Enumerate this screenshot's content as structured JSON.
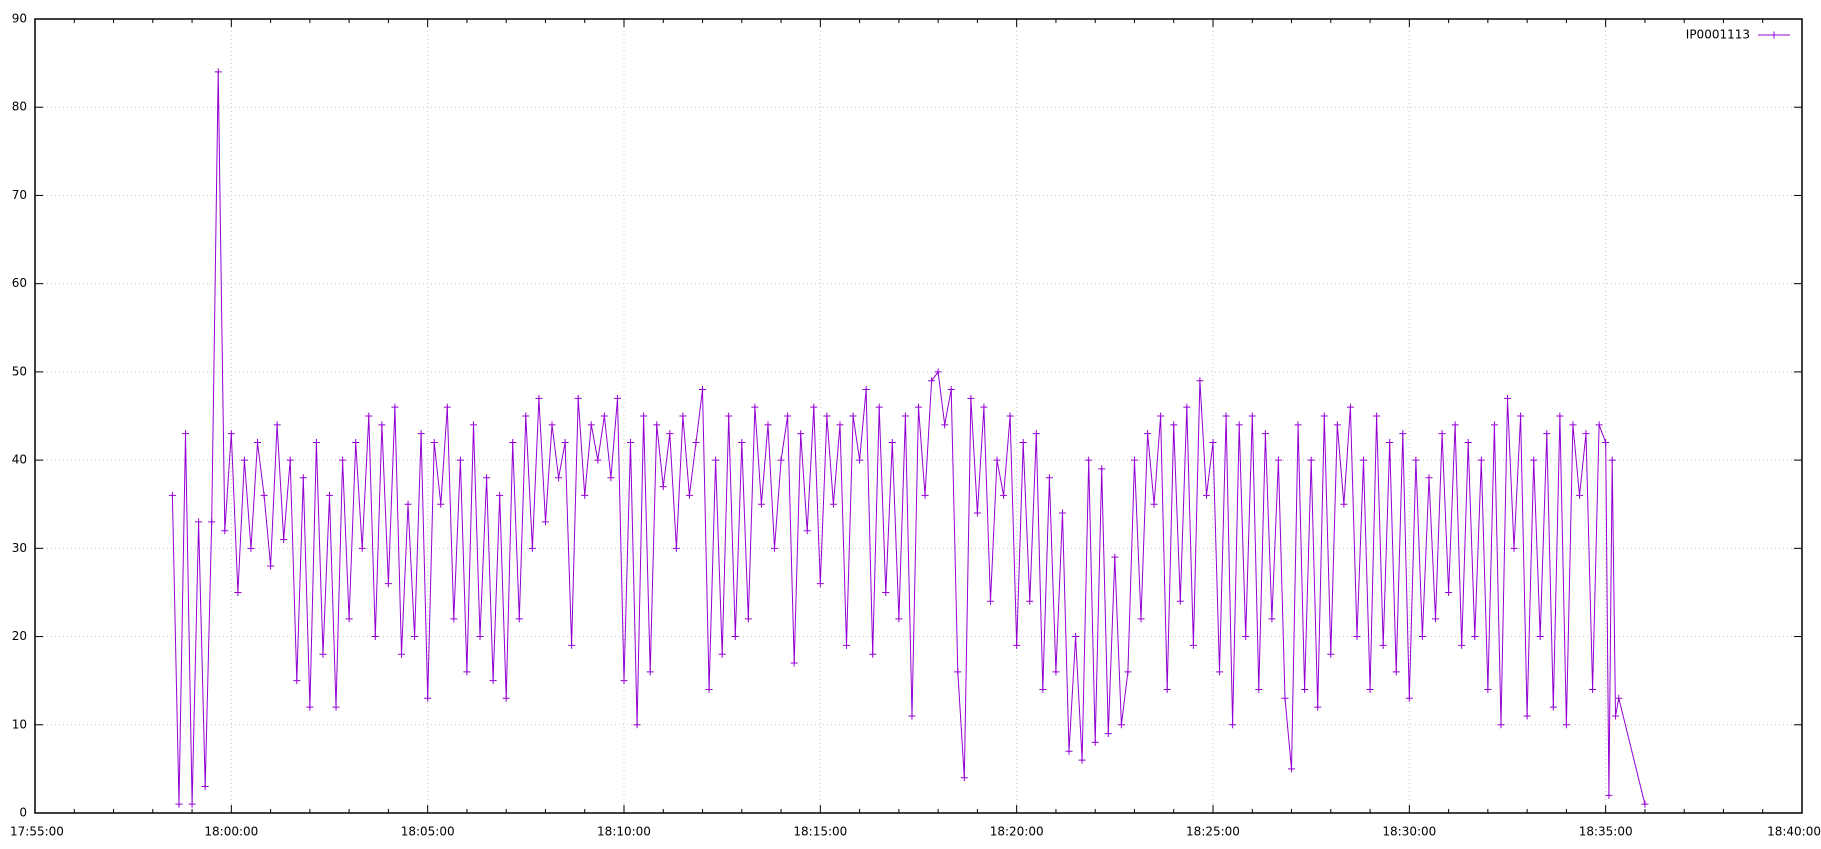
{
  "chart_data": {
    "type": "line",
    "series": [
      {
        "name": "IP0001113",
        "color": "#9400d3",
        "x": [
          "17:58:30",
          "17:58:40",
          "17:58:50",
          "17:59:00",
          "17:59:10",
          "17:59:20",
          "17:59:30",
          "17:59:40",
          "17:59:50",
          "18:00:00",
          "18:00:10",
          "18:00:20",
          "18:00:30",
          "18:00:40",
          "18:00:50",
          "18:01:00",
          "18:01:10",
          "18:01:20",
          "18:01:30",
          "18:01:40",
          "18:01:50",
          "18:02:00",
          "18:02:10",
          "18:02:20",
          "18:02:30",
          "18:02:40",
          "18:02:50",
          "18:03:00",
          "18:03:10",
          "18:03:20",
          "18:03:30",
          "18:03:40",
          "18:03:50",
          "18:04:00",
          "18:04:10",
          "18:04:20",
          "18:04:30",
          "18:04:40",
          "18:04:50",
          "18:05:00",
          "18:05:10",
          "18:05:20",
          "18:05:30",
          "18:05:40",
          "18:05:50",
          "18:06:00",
          "18:06:10",
          "18:06:20",
          "18:06:30",
          "18:06:40",
          "18:06:50",
          "18:07:00",
          "18:07:10",
          "18:07:20",
          "18:07:30",
          "18:07:40",
          "18:07:50",
          "18:08:00",
          "18:08:10",
          "18:08:20",
          "18:08:30",
          "18:08:40",
          "18:08:50",
          "18:09:00",
          "18:09:10",
          "18:09:20",
          "18:09:30",
          "18:09:40",
          "18:09:50",
          "18:10:00",
          "18:10:10",
          "18:10:20",
          "18:10:30",
          "18:10:40",
          "18:10:50",
          "18:11:00",
          "18:11:10",
          "18:11:20",
          "18:11:30",
          "18:11:40",
          "18:11:50",
          "18:12:00",
          "18:12:10",
          "18:12:20",
          "18:12:30",
          "18:12:40",
          "18:12:50",
          "18:13:00",
          "18:13:10",
          "18:13:20",
          "18:13:30",
          "18:13:40",
          "18:13:50",
          "18:14:00",
          "18:14:10",
          "18:14:20",
          "18:14:30",
          "18:14:40",
          "18:14:50",
          "18:15:00",
          "18:15:10",
          "18:15:20",
          "18:15:30",
          "18:15:40",
          "18:15:50",
          "18:16:00",
          "18:16:10",
          "18:16:20",
          "18:16:30",
          "18:16:40",
          "18:16:50",
          "18:17:00",
          "18:17:10",
          "18:17:20",
          "18:17:30",
          "18:17:40",
          "18:17:50",
          "18:18:00",
          "18:18:10",
          "18:18:20",
          "18:18:30",
          "18:18:40",
          "18:18:50",
          "18:19:00",
          "18:19:10",
          "18:19:20",
          "18:19:30",
          "18:19:40",
          "18:19:50",
          "18:20:00",
          "18:20:10",
          "18:20:20",
          "18:20:30",
          "18:20:40",
          "18:20:50",
          "18:21:00",
          "18:21:10",
          "18:21:20",
          "18:21:30",
          "18:21:40",
          "18:21:50",
          "18:22:00",
          "18:22:10",
          "18:22:20",
          "18:22:30",
          "18:22:40",
          "18:22:50",
          "18:23:00",
          "18:23:10",
          "18:23:20",
          "18:23:30",
          "18:23:40",
          "18:23:50",
          "18:24:00",
          "18:24:10",
          "18:24:20",
          "18:24:30",
          "18:24:40",
          "18:24:50",
          "18:25:00",
          "18:25:10",
          "18:25:20",
          "18:25:30",
          "18:25:40",
          "18:25:50",
          "18:26:00",
          "18:26:10",
          "18:26:20",
          "18:26:30",
          "18:26:40",
          "18:26:50",
          "18:27:00",
          "18:27:10",
          "18:27:20",
          "18:27:30",
          "18:27:40",
          "18:27:50",
          "18:28:00",
          "18:28:10",
          "18:28:20",
          "18:28:30",
          "18:28:40",
          "18:28:50",
          "18:29:00",
          "18:29:10",
          "18:29:20",
          "18:29:30",
          "18:29:40",
          "18:29:50",
          "18:30:00",
          "18:30:10",
          "18:30:20",
          "18:30:30",
          "18:30:40",
          "18:30:50",
          "18:31:00",
          "18:31:10",
          "18:31:20",
          "18:31:30",
          "18:31:40",
          "18:31:50",
          "18:32:00",
          "18:32:10",
          "18:32:20",
          "18:32:30",
          "18:32:40",
          "18:32:50",
          "18:33:00",
          "18:33:10",
          "18:33:20",
          "18:33:30",
          "18:33:40",
          "18:33:50",
          "18:34:00",
          "18:34:10",
          "18:34:20",
          "18:34:30",
          "18:34:40",
          "18:34:50",
          "18:35:00",
          "18:35:05",
          "18:35:10",
          "18:35:15",
          "18:35:20",
          "18:36:00"
        ],
        "values": [
          36,
          1,
          43,
          1,
          33,
          3,
          33,
          84,
          32,
          43,
          25,
          40,
          30,
          42,
          36,
          28,
          44,
          31,
          40,
          15,
          38,
          12,
          42,
          18,
          36,
          12,
          40,
          22,
          42,
          30,
          45,
          20,
          44,
          26,
          46,
          18,
          35,
          20,
          43,
          13,
          42,
          35,
          46,
          22,
          40,
          16,
          44,
          20,
          38,
          15,
          36,
          13,
          42,
          22,
          45,
          30,
          47,
          33,
          44,
          38,
          42,
          19,
          47,
          36,
          44,
          40,
          45,
          38,
          47,
          15,
          42,
          10,
          45,
          16,
          44,
          37,
          43,
          30,
          45,
          36,
          42,
          48,
          14,
          40,
          18,
          45,
          20,
          42,
          22,
          46,
          35,
          44,
          30,
          40,
          45,
          17,
          43,
          32,
          46,
          26,
          45,
          35,
          44,
          19,
          45,
          40,
          48,
          18,
          46,
          25,
          42,
          22,
          45,
          11,
          46,
          36,
          49,
          50,
          44,
          48,
          16,
          4,
          47,
          34,
          46,
          24,
          40,
          36,
          45,
          19,
          42,
          24,
          43,
          14,
          38,
          16,
          34,
          7,
          20,
          6,
          40,
          8,
          39,
          9,
          29,
          10,
          16,
          40,
          22,
          43,
          35,
          45,
          14,
          44,
          24,
          46,
          19,
          49,
          36,
          42,
          16,
          45,
          10,
          44,
          20,
          45,
          14,
          43,
          22,
          40,
          13,
          5,
          44,
          14,
          40,
          12,
          45,
          18,
          44,
          35,
          46,
          20,
          40,
          14,
          45,
          19,
          42,
          16,
          43,
          13,
          40,
          20,
          38,
          22,
          43,
          25,
          44,
          19,
          42,
          20,
          40,
          14,
          44,
          10,
          47,
          30,
          45,
          11,
          40,
          20,
          43,
          12,
          45,
          10,
          44,
          36,
          43,
          14,
          44,
          42,
          2,
          40,
          11,
          13,
          1
        ]
      }
    ],
    "xlim": [
      "17:55:00",
      "18:40:00"
    ],
    "xticks": [
      "17:55:00",
      "18:00:00",
      "18:05:00",
      "18:10:00",
      "18:15:00",
      "18:20:00",
      "18:25:00",
      "18:30:00",
      "18:35:00",
      "18:40:00"
    ],
    "ylim": [
      0,
      90
    ],
    "yticks": [
      0,
      10,
      20,
      30,
      40,
      50,
      60,
      70,
      80,
      90
    ],
    "grid": true,
    "legend": "top-right"
  }
}
